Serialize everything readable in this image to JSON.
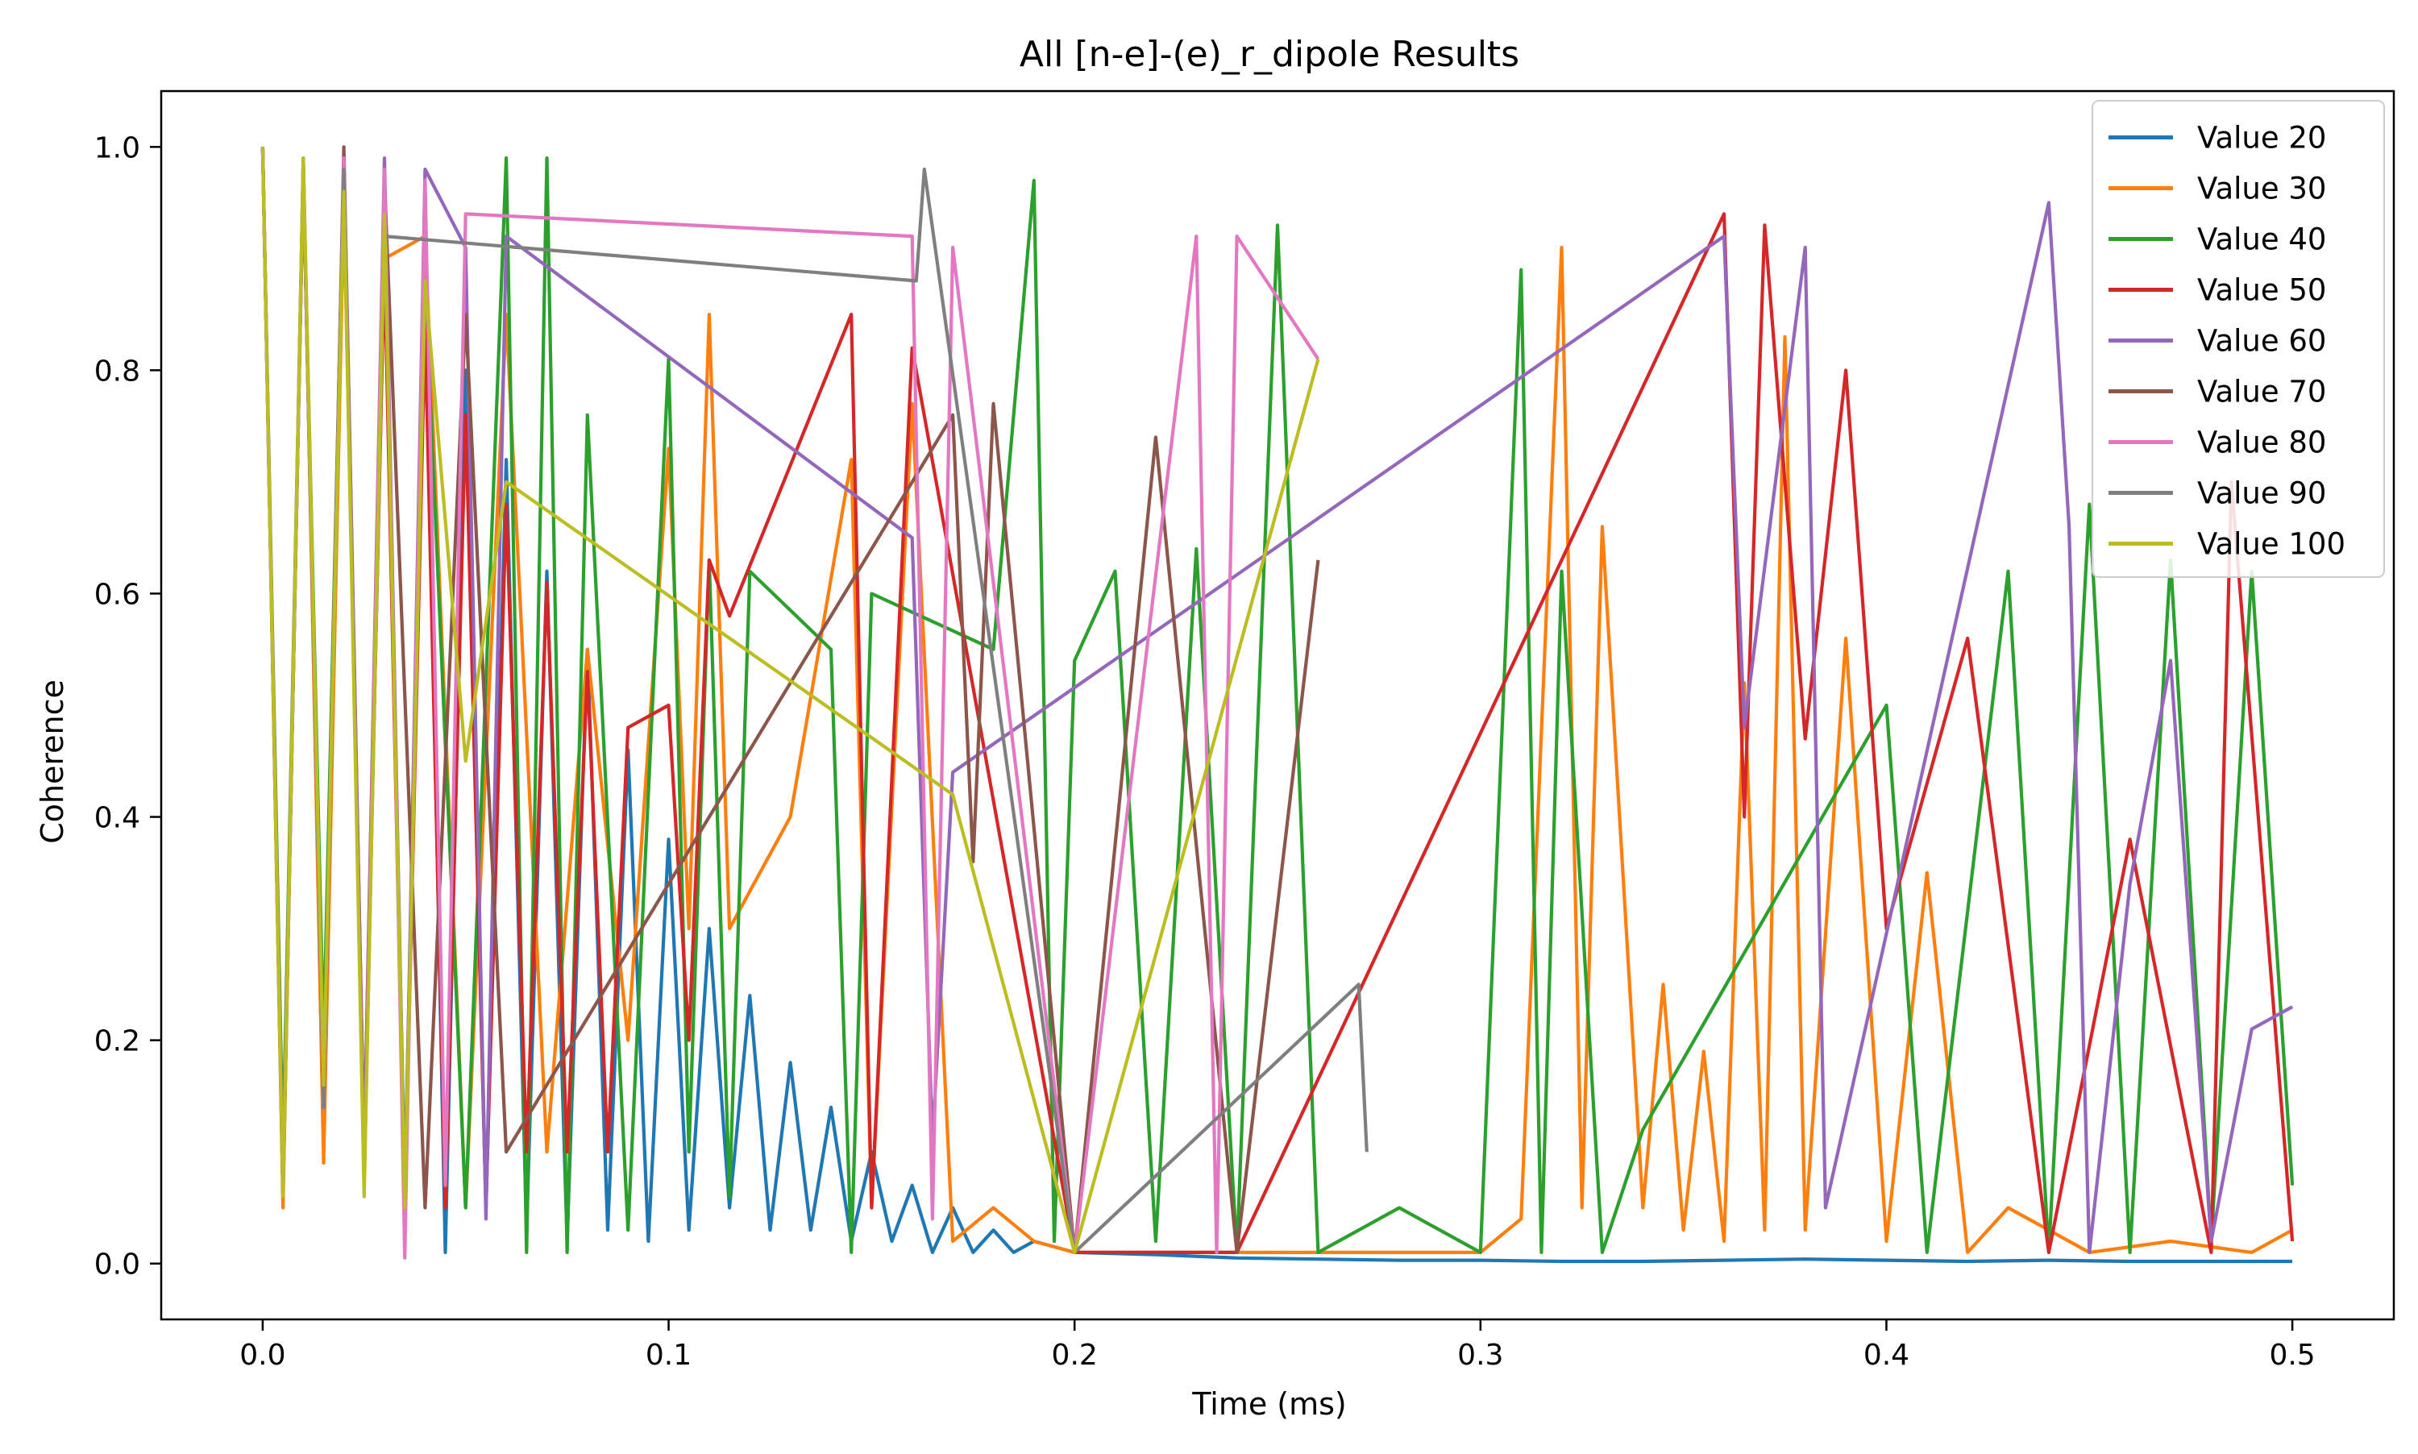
{
  "chart_data": {
    "type": "line",
    "title": "All [n-e]-(e)_r_dipole Results",
    "xlabel": "Time (ms)",
    "ylabel": "Coherence",
    "xlim": [
      -0.025,
      0.525
    ],
    "ylim": [
      -0.05,
      1.05
    ],
    "xticks": [
      0.0,
      0.1,
      0.2,
      0.3,
      0.4,
      0.5
    ],
    "xtick_labels": [
      "0.0",
      "0.1",
      "0.2",
      "0.3",
      "0.4",
      "0.5"
    ],
    "yticks": [
      0.0,
      0.2,
      0.4,
      0.6,
      0.8,
      1.0
    ],
    "ytick_labels": [
      "0.0",
      "0.2",
      "0.4",
      "0.6",
      "0.8",
      "1.0"
    ],
    "grid": false,
    "legend_position": "top-right",
    "series": [
      {
        "name": "Value 20",
        "color": "#1f77b4",
        "x": [
          0.0,
          0.005,
          0.01,
          0.015,
          0.02,
          0.025,
          0.03,
          0.035,
          0.04,
          0.045,
          0.05,
          0.055,
          0.06,
          0.065,
          0.07,
          0.075,
          0.08,
          0.085,
          0.09,
          0.095,
          0.1,
          0.105,
          0.11,
          0.115,
          0.12,
          0.125,
          0.13,
          0.135,
          0.14,
          0.145,
          0.15,
          0.155,
          0.16,
          0.165,
          0.17,
          0.175,
          0.18,
          0.185,
          0.19,
          0.2,
          0.22,
          0.24,
          0.26,
          0.28,
          0.3,
          0.32,
          0.34,
          0.36,
          0.38,
          0.4,
          0.42,
          0.44,
          0.46,
          0.48,
          0.5
        ],
        "y": [
          1.0,
          0.06,
          0.98,
          0.15,
          0.98,
          0.08,
          0.95,
          0.04,
          0.9,
          0.01,
          0.8,
          0.05,
          0.72,
          0.03,
          0.62,
          0.02,
          0.55,
          0.03,
          0.46,
          0.02,
          0.38,
          0.03,
          0.3,
          0.05,
          0.24,
          0.03,
          0.18,
          0.03,
          0.14,
          0.02,
          0.1,
          0.02,
          0.07,
          0.01,
          0.05,
          0.01,
          0.03,
          0.01,
          0.02,
          0.01,
          0.008,
          0.005,
          0.004,
          0.003,
          0.003,
          0.002,
          0.002,
          0.003,
          0.004,
          0.003,
          0.002,
          0.003,
          0.002,
          0.002,
          0.002
        ]
      },
      {
        "name": "Value 30",
        "color": "#ff7f0e",
        "x": [
          0.0,
          0.005,
          0.01,
          0.015,
          0.02,
          0.025,
          0.03,
          0.04,
          0.05,
          0.06,
          0.07,
          0.08,
          0.09,
          0.1,
          0.105,
          0.11,
          0.115,
          0.13,
          0.145,
          0.15,
          0.16,
          0.17,
          0.18,
          0.19,
          0.2,
          0.25,
          0.3,
          0.31,
          0.32,
          0.325,
          0.33,
          0.34,
          0.345,
          0.35,
          0.355,
          0.36,
          0.365,
          0.37,
          0.375,
          0.38,
          0.39,
          0.4,
          0.41,
          0.42,
          0.43,
          0.45,
          0.47,
          0.49,
          0.5
        ],
        "y": [
          1.0,
          0.05,
          0.99,
          0.09,
          0.95,
          0.1,
          0.9,
          0.92,
          0.05,
          0.85,
          0.1,
          0.55,
          0.2,
          0.73,
          0.3,
          0.85,
          0.3,
          0.4,
          0.72,
          0.05,
          0.77,
          0.02,
          0.05,
          0.02,
          0.01,
          0.01,
          0.01,
          0.04,
          0.91,
          0.05,
          0.66,
          0.05,
          0.25,
          0.03,
          0.19,
          0.02,
          0.52,
          0.03,
          0.83,
          0.03,
          0.56,
          0.02,
          0.35,
          0.01,
          0.05,
          0.01,
          0.02,
          0.01,
          0.03
        ]
      },
      {
        "name": "Value 40",
        "color": "#2ca02c",
        "x": [
          0.0,
          0.005,
          0.01,
          0.015,
          0.02,
          0.025,
          0.03,
          0.035,
          0.04,
          0.05,
          0.06,
          0.065,
          0.07,
          0.075,
          0.08,
          0.09,
          0.1,
          0.105,
          0.11,
          0.115,
          0.12,
          0.14,
          0.145,
          0.15,
          0.18,
          0.19,
          0.195,
          0.2,
          0.21,
          0.22,
          0.23,
          0.24,
          0.25,
          0.26,
          0.28,
          0.3,
          0.31,
          0.315,
          0.32,
          0.33,
          0.34,
          0.4,
          0.41,
          0.43,
          0.44,
          0.45,
          0.46,
          0.47,
          0.48,
          0.49,
          0.5
        ],
        "y": [
          1.0,
          0.1,
          0.98,
          0.2,
          0.98,
          0.07,
          0.93,
          0.07,
          0.88,
          0.05,
          0.99,
          0.01,
          0.99,
          0.01,
          0.76,
          0.03,
          0.81,
          0.1,
          0.63,
          0.06,
          0.62,
          0.55,
          0.01,
          0.6,
          0.55,
          0.97,
          0.02,
          0.54,
          0.62,
          0.02,
          0.64,
          0.01,
          0.93,
          0.01,
          0.05,
          0.01,
          0.89,
          0.01,
          0.62,
          0.01,
          0.12,
          0.5,
          0.01,
          0.62,
          0.01,
          0.68,
          0.01,
          0.63,
          0.02,
          0.62,
          0.07
        ]
      },
      {
        "name": "Value 50",
        "color": "#d62728",
        "x": [
          0.0,
          0.005,
          0.01,
          0.015,
          0.02,
          0.025,
          0.03,
          0.035,
          0.04,
          0.045,
          0.05,
          0.055,
          0.06,
          0.065,
          0.07,
          0.075,
          0.08,
          0.085,
          0.09,
          0.1,
          0.105,
          0.11,
          0.115,
          0.145,
          0.15,
          0.16,
          0.2,
          0.24,
          0.36,
          0.365,
          0.37,
          0.38,
          0.39,
          0.4,
          0.42,
          0.44,
          0.46,
          0.48,
          0.485,
          0.5
        ],
        "y": [
          1.0,
          0.07,
          0.98,
          0.14,
          0.98,
          0.1,
          0.9,
          0.05,
          0.84,
          0.05,
          0.76,
          0.05,
          0.68,
          0.1,
          0.61,
          0.1,
          0.53,
          0.1,
          0.48,
          0.5,
          0.2,
          0.63,
          0.58,
          0.85,
          0.05,
          0.82,
          0.01,
          0.01,
          0.94,
          0.4,
          0.93,
          0.47,
          0.8,
          0.3,
          0.56,
          0.01,
          0.38,
          0.01,
          0.7,
          0.02
        ]
      },
      {
        "name": "Value 60",
        "color": "#9467bd",
        "x": [
          0.0,
          0.005,
          0.01,
          0.015,
          0.02,
          0.025,
          0.03,
          0.035,
          0.04,
          0.05,
          0.055,
          0.06,
          0.16,
          0.165,
          0.17,
          0.36,
          0.365,
          0.38,
          0.385,
          0.44,
          0.445,
          0.45,
          0.46,
          0.47,
          0.48,
          0.49,
          0.5
        ],
        "y": [
          1.0,
          0.06,
          0.98,
          0.15,
          0.99,
          0.1,
          0.99,
          0.05,
          0.98,
          0.91,
          0.04,
          0.92,
          0.65,
          0.11,
          0.44,
          0.92,
          0.48,
          0.91,
          0.05,
          0.95,
          0.66,
          0.01,
          0.34,
          0.54,
          0.02,
          0.21,
          0.23
        ]
      },
      {
        "name": "Value 70",
        "color": "#8c564b",
        "x": [
          0.0,
          0.005,
          0.01,
          0.015,
          0.02,
          0.025,
          0.03,
          0.04,
          0.05,
          0.06,
          0.17,
          0.175,
          0.18,
          0.2,
          0.22,
          0.24,
          0.26
        ],
        "y": [
          1.0,
          0.06,
          0.98,
          0.14,
          1.0,
          0.1,
          0.97,
          0.05,
          0.85,
          0.1,
          0.76,
          0.36,
          0.77,
          0.01,
          0.74,
          0.01,
          0.63
        ]
      },
      {
        "name": "Value 80",
        "color": "#e377c2",
        "x": [
          0.0,
          0.005,
          0.01,
          0.015,
          0.02,
          0.025,
          0.03,
          0.035,
          0.04,
          0.045,
          0.05,
          0.16,
          0.165,
          0.17,
          0.2,
          0.23,
          0.235,
          0.24,
          0.26
        ],
        "y": [
          1.0,
          0.07,
          0.98,
          0.14,
          0.99,
          0.08,
          0.98,
          0.005,
          0.97,
          0.07,
          0.94,
          0.92,
          0.04,
          0.91,
          0.01,
          0.92,
          0.01,
          0.92,
          0.81
        ]
      },
      {
        "name": "Value 90",
        "color": "#7f7f7f",
        "x": [
          0.0,
          0.005,
          0.01,
          0.015,
          0.02,
          0.025,
          0.03,
          0.161,
          0.163,
          0.2,
          0.27,
          0.272
        ],
        "y": [
          1.0,
          0.07,
          0.99,
          0.14,
          0.98,
          0.07,
          0.92,
          0.88,
          0.98,
          0.01,
          0.25,
          0.1
        ]
      },
      {
        "name": "Value 100",
        "color": "#bcbd22",
        "x": [
          0.0,
          0.005,
          0.01,
          0.015,
          0.02,
          0.025,
          0.03,
          0.035,
          0.04,
          0.05,
          0.06,
          0.17,
          0.2,
          0.26
        ],
        "y": [
          1.0,
          0.06,
          0.99,
          0.16,
          0.96,
          0.06,
          0.94,
          0.05,
          0.88,
          0.45,
          0.7,
          0.42,
          0.01,
          0.81
        ]
      }
    ]
  }
}
